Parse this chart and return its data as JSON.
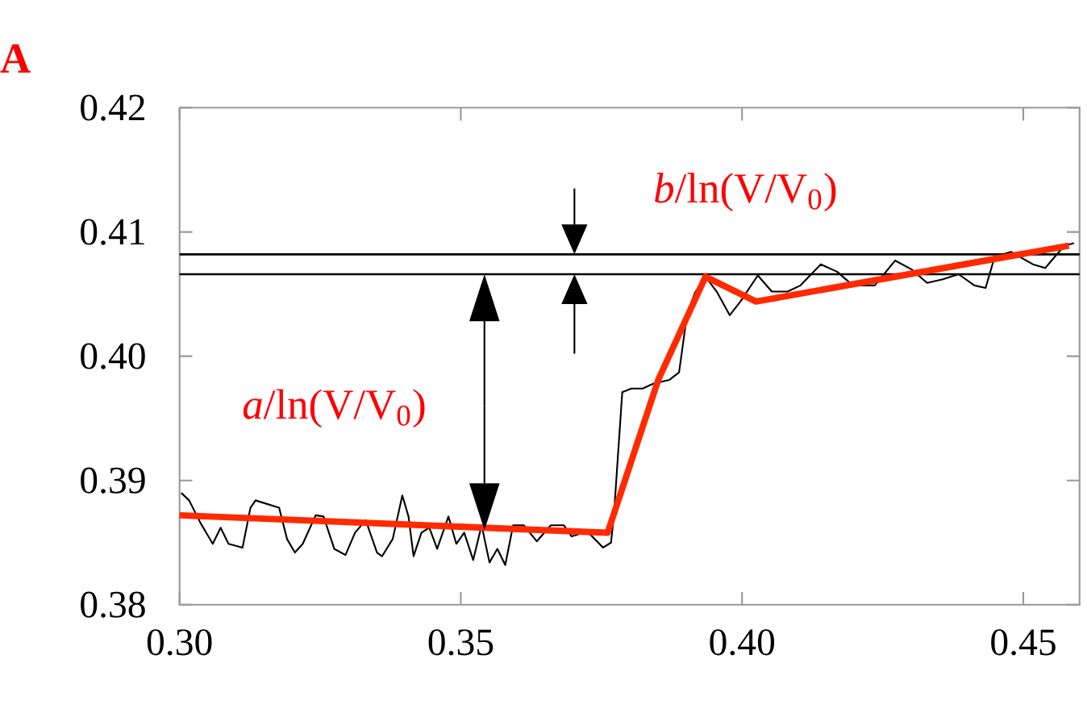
{
  "chart_data": {
    "type": "line",
    "xlim": [
      0.3,
      0.46
    ],
    "ylim": [
      0.38,
      0.42
    ],
    "xticks": [
      {
        "value": 0.3,
        "label": "0.30"
      },
      {
        "value": 0.35,
        "label": "0.35"
      },
      {
        "value": 0.4,
        "label": "0.40"
      },
      {
        "value": 0.45,
        "label": "0.45"
      }
    ],
    "yticks": [
      {
        "value": 0.38,
        "label": "0.38"
      },
      {
        "value": 0.39,
        "label": "0.39"
      },
      {
        "value": 0.4,
        "label": "0.40"
      },
      {
        "value": 0.41,
        "label": "0.41"
      },
      {
        "value": 0.42,
        "label": "0.42"
      }
    ],
    "series": [
      {
        "color": "#000000",
        "x": [
          0.3003,
          0.3017,
          0.3037,
          0.3059,
          0.3073,
          0.3087,
          0.3112,
          0.3126,
          0.3135,
          0.3177,
          0.3191,
          0.3205,
          0.3219,
          0.3242,
          0.3256,
          0.3275,
          0.3295,
          0.3312,
          0.3331,
          0.3351,
          0.336,
          0.3379,
          0.3396,
          0.3407,
          0.3416,
          0.343,
          0.3444,
          0.3458,
          0.3478,
          0.3492,
          0.3506,
          0.3522,
          0.3537,
          0.3551,
          0.3565,
          0.3579,
          0.3593,
          0.3612,
          0.3635,
          0.366,
          0.3683,
          0.3697,
          0.3725,
          0.3753,
          0.3767,
          0.3772,
          0.3787,
          0.3803,
          0.3823,
          0.3843,
          0.3871,
          0.3888,
          0.3902,
          0.3916,
          0.3935,
          0.3955,
          0.3978,
          0.3997,
          0.4028,
          0.4053,
          0.4081,
          0.4104,
          0.414,
          0.4169,
          0.4197,
          0.4236,
          0.4272,
          0.4301,
          0.4329,
          0.4357,
          0.4385,
          0.4413,
          0.4433,
          0.4449,
          0.4478,
          0.4517,
          0.4539,
          0.4573,
          0.459
        ],
        "values": [
          0.389,
          0.3884,
          0.3866,
          0.3849,
          0.3862,
          0.3849,
          0.3846,
          0.3878,
          0.3884,
          0.3878,
          0.3853,
          0.3842,
          0.3849,
          0.3872,
          0.3871,
          0.3845,
          0.384,
          0.3858,
          0.3868,
          0.3842,
          0.3839,
          0.3853,
          0.3888,
          0.3871,
          0.3839,
          0.3858,
          0.3862,
          0.3845,
          0.3871,
          0.3849,
          0.3858,
          0.3836,
          0.3864,
          0.3834,
          0.3845,
          0.3832,
          0.3864,
          0.3864,
          0.3851,
          0.3864,
          0.3864,
          0.3855,
          0.3859,
          0.3846,
          0.385,
          0.3871,
          0.3971,
          0.3974,
          0.3974,
          0.3978,
          0.3981,
          0.3987,
          0.4033,
          0.4051,
          0.4064,
          0.4052,
          0.4033,
          0.4044,
          0.4065,
          0.4052,
          0.4052,
          0.4057,
          0.4074,
          0.4068,
          0.4057,
          0.4057,
          0.4077,
          0.407,
          0.4059,
          0.4062,
          0.4066,
          0.4057,
          0.4055,
          0.408,
          0.4084,
          0.4074,
          0.4071,
          0.4089,
          0.4091
        ]
      },
      {
        "color": "#ff2a00",
        "x": [
          0.3,
          0.3761,
          0.3851,
          0.3935,
          0.4025,
          0.4581
        ],
        "values": [
          0.3872,
          0.3858,
          0.3981,
          0.4064,
          0.4044,
          0.4089
        ]
      }
    ],
    "ref_lines": [
      {
        "axis": "y",
        "value": 0.4066,
        "color": "#000000"
      },
      {
        "axis": "y",
        "value": 0.4082,
        "color": "#000000"
      }
    ],
    "annotations": [
      "A",
      "*a*/ln(V/V$_{0}$)",
      "*b*/ln(V/V$_{0}$)"
    ]
  }
}
